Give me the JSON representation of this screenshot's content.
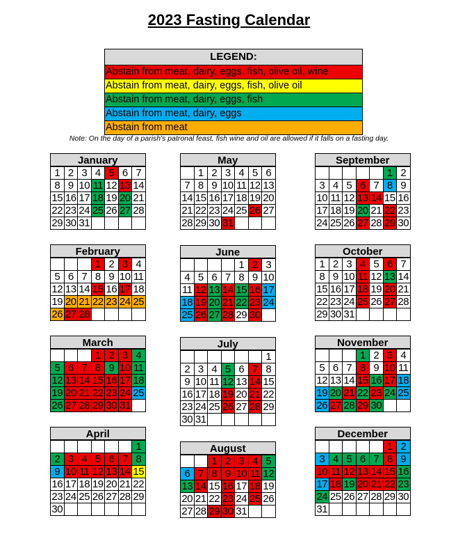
{
  "title": "2023 Fasting Calendar",
  "legend": {
    "heading": "LEGEND:",
    "items": [
      {
        "label": "Abstain from meat, dairy, eggs, fish, olive oil, wine",
        "color": "#ee0000"
      },
      {
        "label": "Abstain from meat, dairy, eggs, fish, olive oil",
        "color": "#ffff00"
      },
      {
        "label": "Abstain from meat, dairy, eggs, fish",
        "color": "#00a84f"
      },
      {
        "label": "Abstain from meat, dairy, eggs",
        "color": "#00aeef"
      },
      {
        "label": "Abstain from meat",
        "color": "#ffae00"
      }
    ]
  },
  "note": "Note: On the day of a parish's patronal feast, fish wine and oil are allowed if it falls on a fasting day.",
  "color_codes": {
    "R": "#ee0000",
    "Y": "#ffff00",
    "G": "#00a84f",
    "B": "#00aeef",
    "O": "#ffae00"
  },
  "months": [
    {
      "name": "January",
      "start": 0,
      "days": 31,
      "colors": {
        "5": "R",
        "11": "G",
        "13": "R",
        "18": "G",
        "20": "G",
        "25": "G",
        "27": "G"
      }
    },
    {
      "name": "February",
      "start": 3,
      "days": 28,
      "colors": {
        "1": "R",
        "3": "R",
        "15": "R",
        "17": "R",
        "20": "O",
        "21": "O",
        "22": "O",
        "23": "O",
        "24": "O",
        "25": "O",
        "26": "O",
        "27": "R",
        "28": "R"
      }
    },
    {
      "name": "March",
      "start": 3,
      "days": 31,
      "colors": {
        "1": "R",
        "2": "R",
        "3": "R",
        "4": "G",
        "5": "G",
        "6": "R",
        "7": "R",
        "8": "R",
        "9": "G",
        "10": "R",
        "11": "G",
        "12": "G",
        "13": "R",
        "14": "R",
        "15": "R",
        "16": "R",
        "17": "R",
        "18": "G",
        "19": "G",
        "20": "R",
        "21": "R",
        "22": "R",
        "23": "R",
        "24": "R",
        "25": "B",
        "26": "G",
        "27": "R",
        "28": "R",
        "29": "R",
        "30": "R",
        "31": "R"
      }
    },
    {
      "name": "April",
      "start": 6,
      "days": 30,
      "colors": {
        "1": "G",
        "2": "G",
        "3": "R",
        "4": "R",
        "5": "R",
        "6": "R",
        "7": "R",
        "8": "G",
        "9": "B",
        "10": "R",
        "11": "R",
        "12": "R",
        "13": "R",
        "14": "R",
        "15": "Y"
      }
    },
    {
      "name": "May",
      "start": 1,
      "days": 31,
      "colors": {
        "26": "R",
        "31": "R"
      }
    },
    {
      "name": "June",
      "start": 4,
      "days": 30,
      "colors": {
        "2": "R",
        "12": "R",
        "13": "G",
        "14": "R",
        "15": "G",
        "16": "R",
        "17": "B",
        "18": "B",
        "19": "R",
        "20": "G",
        "21": "R",
        "22": "G",
        "23": "R",
        "24": "B",
        "25": "B",
        "26": "R",
        "27": "G",
        "28": "R",
        "30": "R"
      }
    },
    {
      "name": "July",
      "start": 6,
      "days": 31,
      "colors": {
        "5": "G",
        "7": "R",
        "12": "G",
        "14": "R",
        "19": "R",
        "21": "R",
        "26": "R",
        "28": "R"
      }
    },
    {
      "name": "August",
      "start": 2,
      "days": 31,
      "colors": {
        "1": "R",
        "2": "R",
        "3": "R",
        "4": "R",
        "5": "G",
        "6": "B",
        "7": "R",
        "8": "R",
        "9": "R",
        "10": "R",
        "11": "R",
        "12": "G",
        "13": "G",
        "14": "R",
        "16": "R",
        "18": "R",
        "23": "R",
        "25": "R",
        "29": "R",
        "30": "R"
      }
    },
    {
      "name": "September",
      "start": 5,
      "days": 30,
      "colors": {
        "1": "G",
        "6": "R",
        "8": "B",
        "13": "R",
        "14": "R",
        "20": "G",
        "22": "R",
        "27": "R",
        "29": "R"
      }
    },
    {
      "name": "October",
      "start": 0,
      "days": 31,
      "colors": {
        "4": "R",
        "6": "R",
        "11": "R",
        "13": "G",
        "18": "R",
        "20": "R",
        "25": "R",
        "27": "R"
      }
    },
    {
      "name": "November",
      "start": 3,
      "days": 30,
      "colors": {
        "1": "G",
        "3": "R",
        "8": "R",
        "10": "R",
        "15": "R",
        "16": "G",
        "17": "R",
        "18": "B",
        "19": "B",
        "20": "G",
        "21": "R",
        "22": "G",
        "23": "R",
        "24": "G",
        "25": "B",
        "26": "B",
        "27": "R",
        "28": "G",
        "29": "R",
        "30": "G"
      }
    },
    {
      "name": "December",
      "start": 5,
      "days": 31,
      "colors": {
        "1": "R",
        "2": "B",
        "3": "B",
        "4": "G",
        "5": "G",
        "6": "G",
        "7": "G",
        "8": "R",
        "9": "B",
        "10": "R",
        "11": "R",
        "12": "R",
        "13": "R",
        "14": "R",
        "15": "R",
        "16": "G",
        "17": "B",
        "18": "R",
        "19": "G",
        "20": "R",
        "21": "R",
        "22": "R",
        "23": "G",
        "24": "G"
      }
    }
  ]
}
